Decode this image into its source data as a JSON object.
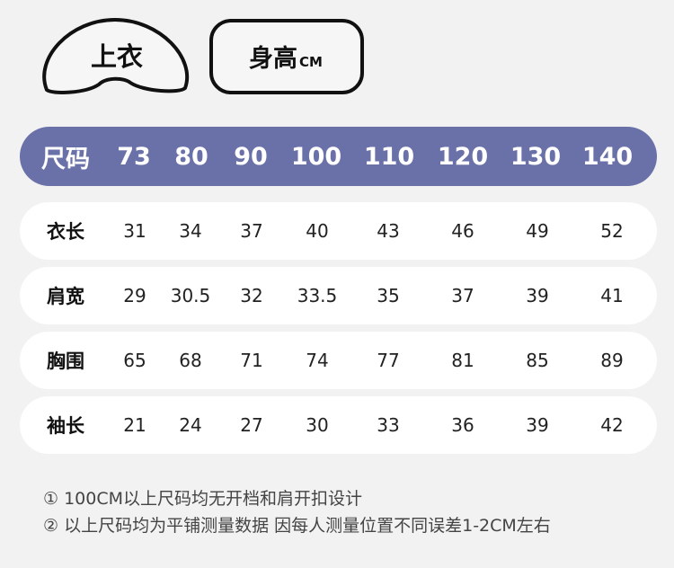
{
  "badges": {
    "top_label": "上衣",
    "height_label": "身高",
    "height_unit": "CM"
  },
  "table": {
    "header_label": "尺码",
    "sizes": [
      "73",
      "80",
      "90",
      "100",
      "110",
      "120",
      "130",
      "140"
    ],
    "rows": [
      {
        "label": "衣长",
        "values": [
          "31",
          "34",
          "37",
          "40",
          "43",
          "46",
          "49",
          "52"
        ]
      },
      {
        "label": "肩宽",
        "values": [
          "29",
          "30.5",
          "32",
          "33.5",
          "35",
          "37",
          "39",
          "41"
        ]
      },
      {
        "label": "胸围",
        "values": [
          "65",
          "68",
          "71",
          "74",
          "77",
          "81",
          "85",
          "89"
        ]
      },
      {
        "label": "袖长",
        "values": [
          "21",
          "24",
          "27",
          "30",
          "33",
          "36",
          "39",
          "42"
        ]
      }
    ]
  },
  "notes": [
    "① 100CM以上尺码均无开档和肩开扣设计",
    "② 以上尺码均为平铺测量数据 因每人测量位置不同误差1-2CM左右"
  ],
  "colors": {
    "header_bar": "#6a71a8",
    "background": "#f2f2f2",
    "row": "#ffffff"
  }
}
